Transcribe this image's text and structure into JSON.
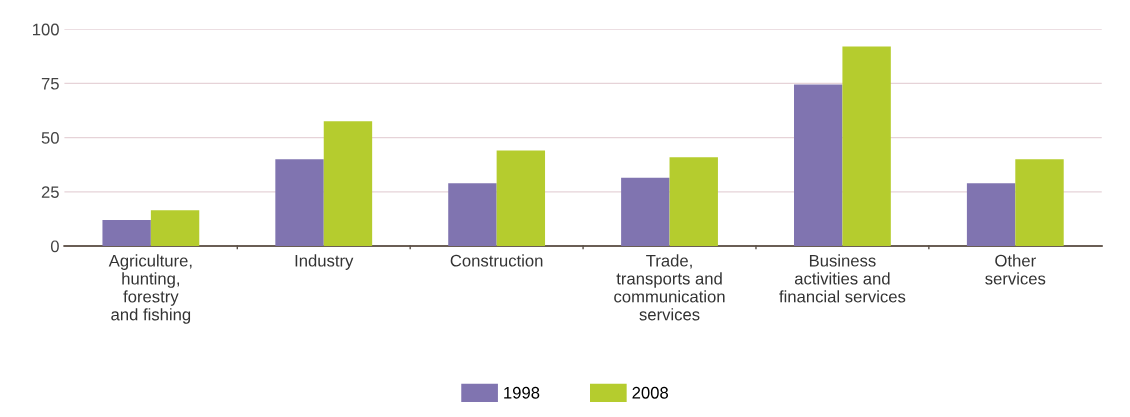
{
  "chart_data": {
    "type": "bar",
    "categories": [
      "Agriculture,\nhunting,\nforestry\nand fishing",
      "Industry",
      "Construction",
      "Trade,\ntransports and\ncommunication\nservices",
      "Business\nactivities and\nfinancial services",
      "Other\nservices"
    ],
    "series": [
      {
        "name": "1998",
        "color": "#8074b0",
        "values": [
          12,
          40,
          29,
          31.5,
          74.5,
          29
        ]
      },
      {
        "name": "2008",
        "color": "#b5cc2e",
        "values": [
          16.5,
          57.5,
          44,
          41,
          92,
          40
        ]
      }
    ],
    "ylim": [
      0,
      100
    ],
    "yticks": [
      0,
      25,
      50,
      75,
      100
    ],
    "grid": "y",
    "legend": "bottom"
  }
}
